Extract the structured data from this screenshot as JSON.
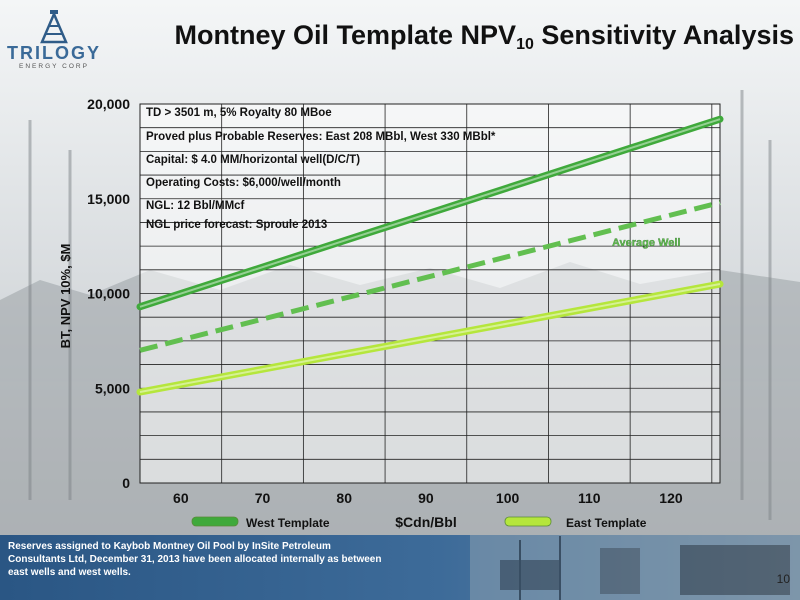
{
  "slide": {
    "logo": {
      "text": "TRILOGY",
      "subtext": "ENERGY CORP"
    },
    "title_main": "Montney Oil Template NPV",
    "title_sub": "10",
    "title_end": " Sensitivity Analysis",
    "footnote": "Reserves assigned to Kaybob Montney Oil Pool by InSite Petroleum Consultants Ltd, December 31, 2013 have been allocated internally as between east wells and west wells.",
    "page_number": "10"
  },
  "colors": {
    "west": "#3fa93b",
    "average": "#62bf50",
    "east": "#b5e63c",
    "footer_band": "#2f5c88",
    "plot_bg": "#ffffff"
  },
  "chart_data": {
    "type": "line",
    "title": "",
    "xlabel": "$Cdn/Bbl",
    "ylabel": "BT, NPV 10%, $M",
    "xlim": [
      55,
      126
    ],
    "ylim": [
      0,
      20000
    ],
    "xticks": [
      60,
      70,
      80,
      90,
      100,
      110,
      120
    ],
    "yticks": [
      0,
      5000,
      10000,
      15000,
      20000
    ],
    "ytick_labels": [
      "0",
      "5,000",
      "10,000",
      "15,000",
      "20,000"
    ],
    "grid": true,
    "legend_position": "bottom",
    "series": [
      {
        "name": "West Template",
        "style": "solid",
        "x": [
          55,
          126
        ],
        "y": [
          9300,
          19200
        ]
      },
      {
        "name": "Average Well",
        "style": "dashed",
        "x": [
          55,
          126
        ],
        "y": [
          7000,
          14800
        ]
      },
      {
        "name": "East Template",
        "style": "solid",
        "x": [
          55,
          126
        ],
        "y": [
          4800,
          10500
        ]
      }
    ],
    "annotations": [
      "TD > 3501 m, 5% Royalty 80 MBoe",
      "Proved plus Probable Reserves: East 208 MBbl, West 330 MBbl*",
      "Capital: $ 4.0 MM/horizontal well(D/C/T)",
      "Operating Costs: $6,000/well/month",
      "NGL: 12 Bbl/MMcf",
      "NGL price forecast: Sproule 2013"
    ]
  }
}
